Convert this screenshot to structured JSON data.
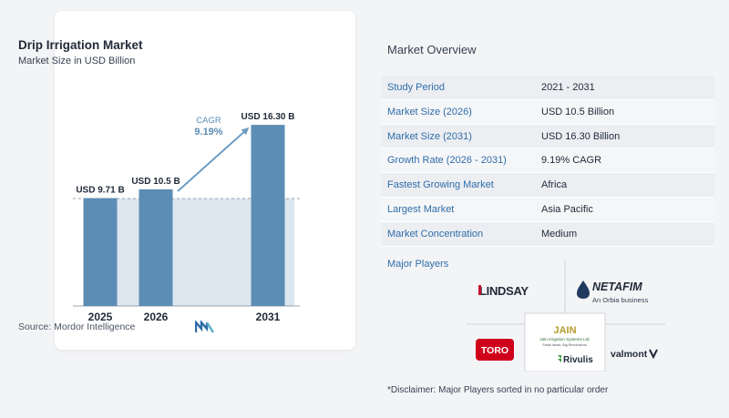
{
  "colors": {
    "bar_dark": "#5b8db5",
    "bar_light": "#dce6ef",
    "accent_blue": "#2f6da8",
    "cagr_arrow": "#6d9cc3"
  },
  "chart": {
    "title": "Drip Irrigation Market",
    "subtitle": "Market Size in USD Billion",
    "cagr_label": "CAGR",
    "cagr_value": "9.19%",
    "source": "Source:  Mordor Intelligence"
  },
  "chart_data": {
    "type": "bar",
    "title": "Drip Irrigation Market",
    "subtitle": "Market Size in USD Billion",
    "categories": [
      "2025",
      "2026",
      "2031"
    ],
    "values": [
      9.71,
      10.5,
      16.3
    ],
    "data_labels": [
      "USD 9.71 B",
      "USD 10.5 B",
      "USD 16.30 B"
    ],
    "xlabel": "",
    "ylabel": "",
    "ylim": [
      0,
      17.5
    ],
    "grid": false,
    "annotation": {
      "label": "CAGR",
      "value": "9.19%"
    }
  },
  "overview": {
    "title": "Market Overview",
    "rows": [
      {
        "label": "Study Period",
        "value": "2021 - 2031"
      },
      {
        "label": "Market Size (2026)",
        "value": "USD 10.5 Billion"
      },
      {
        "label": "Market Size (2031)",
        "value": "USD 16.30 Billion"
      },
      {
        "label": "Growth Rate (2026 - 2031)",
        "value": "9.19% CAGR"
      },
      {
        "label": "Fastest Growing Market",
        "value": "Africa"
      },
      {
        "label": "Largest Market",
        "value": "Asia Pacific"
      },
      {
        "label": "Market Concentration",
        "value": "Medium"
      }
    ]
  },
  "players": {
    "label": "Major Players",
    "logos": {
      "lindsay": "LINDSAY",
      "netafim": "NETAFIM",
      "netafim_sub": "An Orbia business",
      "jain": "JAIN",
      "jain_sub": "Jain Irrigation Systems Ltd.",
      "jain_tagline": "Small Ideas. Big Revolutions.",
      "toro": "TORO",
      "rivulis": "Rivulis",
      "valmont": "valmont"
    },
    "icons": [
      "netafim-drop-icon",
      "rivulis-leaf-icon",
      "valmont-v-icon"
    ]
  },
  "disclaimer": "*Disclaimer: Major Players sorted in no particular order"
}
